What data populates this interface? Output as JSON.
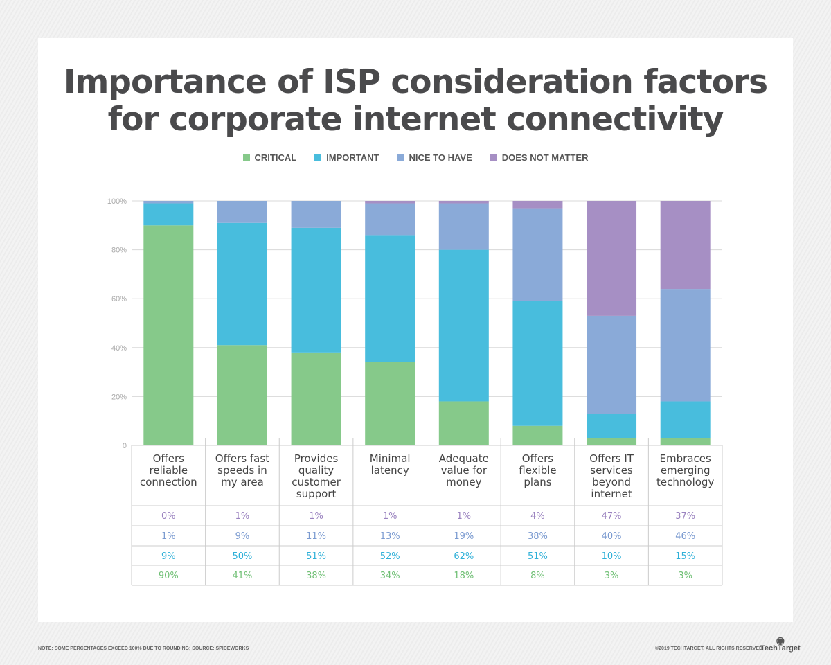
{
  "chart_data": {
    "type": "bar",
    "stacked": true,
    "title": "Importance of ISP consideration factors for corporate internet connectivity",
    "categories": [
      "Offers reliable connection",
      "Offers fast speeds in my area",
      "Provides quality customer support",
      "Minimal latency",
      "Adequate value for money",
      "Offers flexible plans",
      "Offers IT services beyond internet",
      "Embraces emerging technology"
    ],
    "category_lines": [
      [
        "Offers",
        "reliable",
        "connection"
      ],
      [
        "Offers fast",
        "speeds in",
        "my area"
      ],
      [
        "Provides",
        "quality",
        "customer",
        "support"
      ],
      [
        "Minimal",
        "latency"
      ],
      [
        "Adequate",
        "value for",
        "money"
      ],
      [
        "Offers",
        "flexible",
        "plans"
      ],
      [
        "Offers IT",
        "services",
        "beyond",
        "internet"
      ],
      [
        "Embraces",
        "emerging",
        "technology"
      ]
    ],
    "series": [
      {
        "name": "CRITICAL",
        "color": "#86c98a",
        "text_color": "#6fbf74",
        "values": [
          90,
          41,
          38,
          34,
          18,
          8,
          3,
          3
        ]
      },
      {
        "name": "IMPORTANT",
        "color": "#48bddd",
        "text_color": "#2fb0d8",
        "values": [
          9,
          50,
          51,
          52,
          62,
          51,
          10,
          15
        ]
      },
      {
        "name": "NICE TO HAVE",
        "color": "#8aaad8",
        "text_color": "#7a9ad0",
        "values": [
          1,
          9,
          11,
          13,
          19,
          38,
          40,
          46
        ]
      },
      {
        "name": "DOES NOT MATTER",
        "color": "#a68fc4",
        "text_color": "#9a82bf",
        "values": [
          0,
          1,
          1,
          1,
          1,
          4,
          47,
          37
        ]
      }
    ],
    "yticks": [
      "0",
      "20%",
      "40%",
      "60%",
      "80%",
      "100%"
    ],
    "ylim": [
      0,
      100
    ],
    "grid": true,
    "legend": "top-center"
  },
  "footer": {
    "note": "NOTE: SOME PERCENTAGES EXCEED 100% DUE TO ROUNDING; SOURCE: SPICEWORKS",
    "copyright": "©2019 TECHTARGET. ALL RIGHTS RESERVED",
    "logo": "TechTarget"
  }
}
